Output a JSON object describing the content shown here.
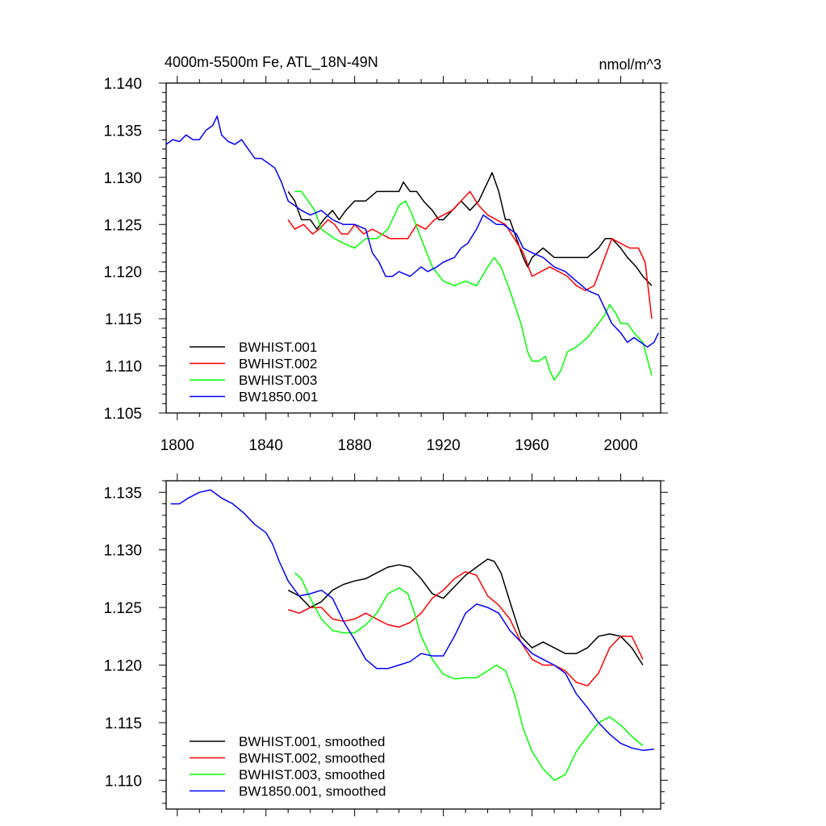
{
  "chart_data": [
    {
      "type": "line",
      "title": "4000m-5500m Fe, ATL_18N-49N",
      "units": "nmol/m^3",
      "xlim": [
        1795,
        2018
      ],
      "ylim": [
        1.105,
        1.14
      ],
      "xticks": [
        1800,
        1840,
        1880,
        1920,
        1960,
        2000
      ],
      "yticks": [
        "1.105",
        "1.110",
        "1.115",
        "1.120",
        "1.125",
        "1.130",
        "1.135",
        "1.140"
      ],
      "legend_position": "bottom-left",
      "series": [
        {
          "name": "BWHIST.001",
          "color": "#000000",
          "x": [
            1850,
            1853,
            1856,
            1860,
            1863,
            1866,
            1870,
            1873,
            1876,
            1880,
            1885,
            1890,
            1895,
            1900,
            1902,
            1905,
            1908,
            1911,
            1915,
            1918,
            1920,
            1924,
            1928,
            1932,
            1936,
            1940,
            1942,
            1945,
            1948,
            1950,
            1953,
            1956,
            1958,
            1960,
            1965,
            1970,
            1975,
            1980,
            1985,
            1990,
            1993,
            1996,
            2000,
            2003,
            2007,
            2010,
            2014
          ],
          "y": [
            1.1285,
            1.1275,
            1.1255,
            1.1255,
            1.1245,
            1.1255,
            1.1265,
            1.1255,
            1.1265,
            1.1275,
            1.1275,
            1.1285,
            1.1285,
            1.1285,
            1.1295,
            1.1285,
            1.1285,
            1.1275,
            1.1265,
            1.1255,
            1.1255,
            1.1265,
            1.1275,
            1.1265,
            1.1275,
            1.1295,
            1.1305,
            1.1285,
            1.1255,
            1.1255,
            1.1235,
            1.1215,
            1.1205,
            1.1215,
            1.1225,
            1.1215,
            1.1215,
            1.1215,
            1.1215,
            1.1225,
            1.1235,
            1.1235,
            1.1225,
            1.1215,
            1.1205,
            1.1195,
            1.1185
          ]
        },
        {
          "name": "BWHIST.002",
          "color": "#ff0000",
          "x": [
            1850,
            1853,
            1857,
            1861,
            1864,
            1868,
            1871,
            1874,
            1877,
            1880,
            1884,
            1888,
            1892,
            1896,
            1900,
            1904,
            1908,
            1912,
            1916,
            1920,
            1924,
            1928,
            1932,
            1936,
            1940,
            1944,
            1948,
            1952,
            1956,
            1960,
            1964,
            1968,
            1972,
            1976,
            1980,
            1984,
            1988,
            1992,
            1996,
            2000,
            2004,
            2008,
            2011,
            2014
          ],
          "y": [
            1.1255,
            1.1245,
            1.125,
            1.124,
            1.1245,
            1.1255,
            1.125,
            1.124,
            1.124,
            1.125,
            1.124,
            1.1245,
            1.124,
            1.1235,
            1.1235,
            1.1235,
            1.125,
            1.1245,
            1.1255,
            1.126,
            1.1265,
            1.1275,
            1.1285,
            1.127,
            1.126,
            1.1255,
            1.125,
            1.1235,
            1.122,
            1.1195,
            1.12,
            1.1205,
            1.12,
            1.1195,
            1.1185,
            1.118,
            1.1185,
            1.121,
            1.1235,
            1.123,
            1.1225,
            1.1225,
            1.121,
            1.115
          ]
        },
        {
          "name": "BWHIST.003",
          "color": "#00ff00",
          "x": [
            1853,
            1856,
            1859,
            1862,
            1865,
            1868,
            1871,
            1875,
            1880,
            1885,
            1890,
            1895,
            1900,
            1903,
            1906,
            1910,
            1915,
            1920,
            1925,
            1930,
            1935,
            1940,
            1943,
            1946,
            1950,
            1955,
            1958,
            1960,
            1963,
            1966,
            1968,
            1970,
            1973,
            1976,
            1980,
            1985,
            1990,
            1993,
            1995,
            1998,
            2000,
            2003,
            2006,
            2010,
            2014
          ],
          "y": [
            1.1285,
            1.1285,
            1.1275,
            1.1265,
            1.1245,
            1.124,
            1.1235,
            1.123,
            1.1225,
            1.1235,
            1.1235,
            1.1245,
            1.127,
            1.1275,
            1.126,
            1.1235,
            1.1205,
            1.119,
            1.1185,
            1.119,
            1.1185,
            1.1205,
            1.1215,
            1.1205,
            1.118,
            1.1145,
            1.1115,
            1.1105,
            1.1105,
            1.111,
            1.1095,
            1.1085,
            1.1095,
            1.1115,
            1.112,
            1.113,
            1.1145,
            1.1155,
            1.1165,
            1.1155,
            1.1145,
            1.1145,
            1.1135,
            1.1125,
            1.109
          ]
        },
        {
          "name": "BW1850.001",
          "color": "#0000ff",
          "x": [
            1795,
            1798,
            1801,
            1804,
            1807,
            1810,
            1813,
            1816,
            1818,
            1820,
            1823,
            1826,
            1829,
            1832,
            1835,
            1838,
            1841,
            1844,
            1847,
            1850,
            1853,
            1856,
            1860,
            1865,
            1870,
            1875,
            1880,
            1885,
            1888,
            1891,
            1894,
            1897,
            1900,
            1905,
            1910,
            1913,
            1917,
            1920,
            1925,
            1928,
            1931,
            1935,
            1938,
            1941,
            1944,
            1947,
            1950,
            1953,
            1956,
            1960,
            1965,
            1970,
            1975,
            1980,
            1985,
            1990,
            1993,
            1996,
            2000,
            2003,
            2006,
            2009,
            2012,
            2015,
            2017
          ],
          "y": [
            1.1335,
            1.134,
            1.1338,
            1.1345,
            1.134,
            1.134,
            1.135,
            1.1355,
            1.1365,
            1.1345,
            1.1338,
            1.1335,
            1.134,
            1.133,
            1.132,
            1.132,
            1.1315,
            1.131,
            1.1295,
            1.1275,
            1.127,
            1.1265,
            1.126,
            1.1265,
            1.1255,
            1.125,
            1.125,
            1.1245,
            1.122,
            1.121,
            1.1195,
            1.1195,
            1.12,
            1.1195,
            1.1205,
            1.12,
            1.1205,
            1.121,
            1.1215,
            1.1225,
            1.123,
            1.1245,
            1.126,
            1.1255,
            1.125,
            1.125,
            1.1245,
            1.124,
            1.1225,
            1.122,
            1.1215,
            1.1205,
            1.12,
            1.119,
            1.118,
            1.1175,
            1.116,
            1.1145,
            1.1135,
            1.1125,
            1.113,
            1.1125,
            1.112,
            1.1125,
            1.1135
          ]
        }
      ]
    },
    {
      "type": "line",
      "xlim": [
        1795,
        2018
      ],
      "ylim": [
        1.1075,
        1.136
      ],
      "xticks": [
        1800,
        1840,
        1880,
        1920,
        1960,
        2000
      ],
      "yticks": [
        "1.110",
        "1.115",
        "1.120",
        "1.125",
        "1.130",
        "1.135"
      ],
      "legend_position": "bottom-left",
      "series": [
        {
          "name": "BWHIST.001, smoothed",
          "color": "#000000",
          "x": [
            1850,
            1855,
            1860,
            1865,
            1870,
            1875,
            1880,
            1885,
            1890,
            1895,
            1900,
            1905,
            1910,
            1915,
            1920,
            1925,
            1930,
            1935,
            1940,
            1943,
            1946,
            1950,
            1955,
            1960,
            1965,
            1970,
            1975,
            1980,
            1985,
            1990,
            1995,
            2000,
            2005,
            2010
          ],
          "y": [
            1.1265,
            1.126,
            1.125,
            1.1255,
            1.1265,
            1.127,
            1.1273,
            1.1275,
            1.128,
            1.1285,
            1.1287,
            1.1285,
            1.1275,
            1.1262,
            1.1258,
            1.1268,
            1.1278,
            1.1285,
            1.1292,
            1.129,
            1.128,
            1.1255,
            1.1225,
            1.1215,
            1.122,
            1.1215,
            1.121,
            1.121,
            1.1215,
            1.1225,
            1.1227,
            1.1225,
            1.1215,
            1.12
          ]
        },
        {
          "name": "BWHIST.002, smoothed",
          "color": "#ff0000",
          "x": [
            1850,
            1855,
            1860,
            1865,
            1870,
            1875,
            1880,
            1885,
            1890,
            1895,
            1900,
            1905,
            1910,
            1915,
            1920,
            1925,
            1930,
            1935,
            1940,
            1945,
            1950,
            1955,
            1960,
            1965,
            1970,
            1975,
            1980,
            1985,
            1990,
            1995,
            2000,
            2005,
            2010
          ],
          "y": [
            1.1248,
            1.1245,
            1.125,
            1.125,
            1.124,
            1.1238,
            1.124,
            1.1245,
            1.124,
            1.1235,
            1.1233,
            1.1237,
            1.1245,
            1.1258,
            1.1265,
            1.1275,
            1.1281,
            1.1278,
            1.126,
            1.1252,
            1.124,
            1.122,
            1.1205,
            1.12,
            1.12,
            1.1195,
            1.1185,
            1.1182,
            1.1193,
            1.1215,
            1.1225,
            1.1225,
            1.1205
          ]
        },
        {
          "name": "BWHIST.003, smoothed",
          "color": "#00ff00",
          "x": [
            1853,
            1856,
            1860,
            1865,
            1870,
            1875,
            1880,
            1885,
            1890,
            1895,
            1900,
            1904,
            1907,
            1910,
            1915,
            1920,
            1925,
            1930,
            1935,
            1940,
            1944,
            1948,
            1952,
            1956,
            1960,
            1965,
            1970,
            1975,
            1980,
            1985,
            1990,
            1995,
            2000,
            2005,
            2010
          ],
          "y": [
            1.128,
            1.1275,
            1.1258,
            1.124,
            1.123,
            1.1228,
            1.1228,
            1.1235,
            1.1245,
            1.1262,
            1.1267,
            1.1262,
            1.1245,
            1.1225,
            1.1205,
            1.1192,
            1.1188,
            1.1189,
            1.1189,
            1.1195,
            1.12,
            1.1195,
            1.1175,
            1.1145,
            1.1125,
            1.111,
            1.11,
            1.1105,
            1.1125,
            1.1138,
            1.115,
            1.1155,
            1.1148,
            1.1138,
            1.113
          ]
        },
        {
          "name": "BW1850.001, smoothed",
          "color": "#0000ff",
          "x": [
            1797,
            1801,
            1805,
            1810,
            1815,
            1820,
            1825,
            1830,
            1835,
            1840,
            1843,
            1846,
            1850,
            1855,
            1860,
            1865,
            1870,
            1875,
            1880,
            1885,
            1890,
            1895,
            1900,
            1905,
            1910,
            1915,
            1920,
            1925,
            1930,
            1935,
            1940,
            1945,
            1950,
            1955,
            1960,
            1965,
            1970,
            1975,
            1980,
            1985,
            1990,
            1995,
            2000,
            2005,
            2010,
            2015
          ],
          "y": [
            1.134,
            1.134,
            1.1345,
            1.135,
            1.1352,
            1.1345,
            1.134,
            1.1332,
            1.1322,
            1.1315,
            1.1305,
            1.129,
            1.1273,
            1.126,
            1.1262,
            1.1265,
            1.1258,
            1.1238,
            1.1222,
            1.1205,
            1.1197,
            1.1197,
            1.12,
            1.1203,
            1.121,
            1.1208,
            1.1208,
            1.1225,
            1.1245,
            1.1253,
            1.125,
            1.1245,
            1.123,
            1.122,
            1.121,
            1.1205,
            1.12,
            1.1193,
            1.1175,
            1.1163,
            1.115,
            1.114,
            1.1132,
            1.1128,
            1.1126,
            1.1127
          ]
        }
      ]
    }
  ]
}
